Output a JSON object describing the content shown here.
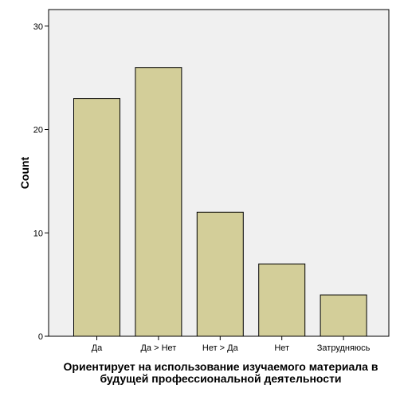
{
  "chart_data": {
    "type": "bar",
    "categories": [
      "Да",
      "Да > Нет",
      "Нет > Да",
      "Нет",
      "Затрудняюсь"
    ],
    "values": [
      23,
      26,
      12,
      7,
      4
    ],
    "title": "",
    "xlabel_lines": [
      "Ориентирует на использование изучаемого материала в",
      "будущей профессиональной деятельности"
    ],
    "ylabel": "Count",
    "ylim": [
      0,
      31.6
    ],
    "yticks": [
      0,
      10,
      20,
      30
    ],
    "grid": false,
    "legend": "none",
    "colors": {
      "bar_fill": "#d3ce99",
      "bar_stroke": "#000000",
      "plot_background": "#f0f0f0",
      "plot_border": "#000000"
    }
  }
}
